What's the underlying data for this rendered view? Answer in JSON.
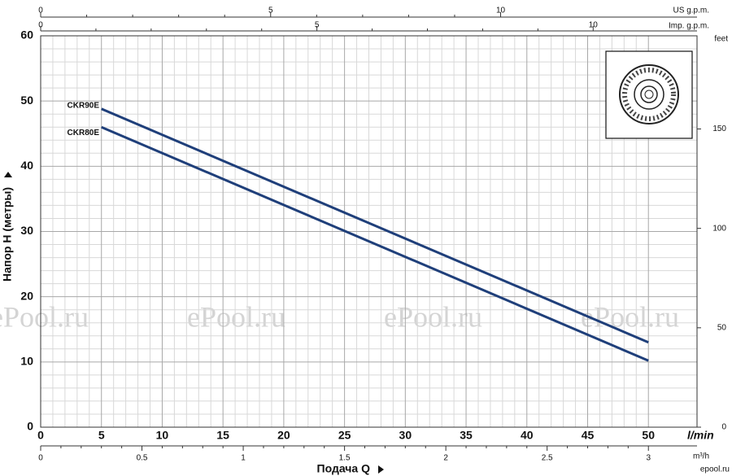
{
  "chart_data": {
    "type": "line",
    "ylabel": "Напор H (метры)",
    "xlabel": "Подача Q",
    "xunit": "l/min",
    "x": [
      5,
      50
    ],
    "series": [
      {
        "name": "CKR90E",
        "color": "#1f3f7a",
        "values": [
          48.8,
          13
        ]
      },
      {
        "name": "CKR80E",
        "color": "#1f3f7a",
        "values": [
          46,
          10.2
        ]
      }
    ],
    "xlim": [
      0,
      54
    ],
    "xticks": [
      0,
      5,
      10,
      15,
      20,
      25,
      30,
      35,
      40,
      45,
      50
    ],
    "ylim": [
      0,
      60
    ],
    "yticks": [
      0,
      10,
      20,
      30,
      40,
      50,
      60
    ],
    "grid": true,
    "feet_axis": {
      "label": "feet",
      "lim": [
        0,
        196.85
      ],
      "ticks": [
        0,
        50,
        100,
        150
      ]
    },
    "us_gpm_axis": {
      "label": "US g.p.m.",
      "lim": [
        0,
        14.27
      ],
      "ticks": [
        0,
        5,
        10
      ]
    },
    "imp_gpm_axis": {
      "label": "Imp. g.p.m.",
      "lim": [
        0,
        11.88
      ],
      "ticks": [
        0,
        5,
        10
      ]
    },
    "m3h_axis": {
      "label": "m³/h",
      "lim": [
        0,
        3.24
      ],
      "ticks": [
        0,
        0.5,
        1,
        1.5,
        2,
        2.5,
        3
      ]
    },
    "watermark": "ePool.ru",
    "logo": "epool.ru"
  }
}
